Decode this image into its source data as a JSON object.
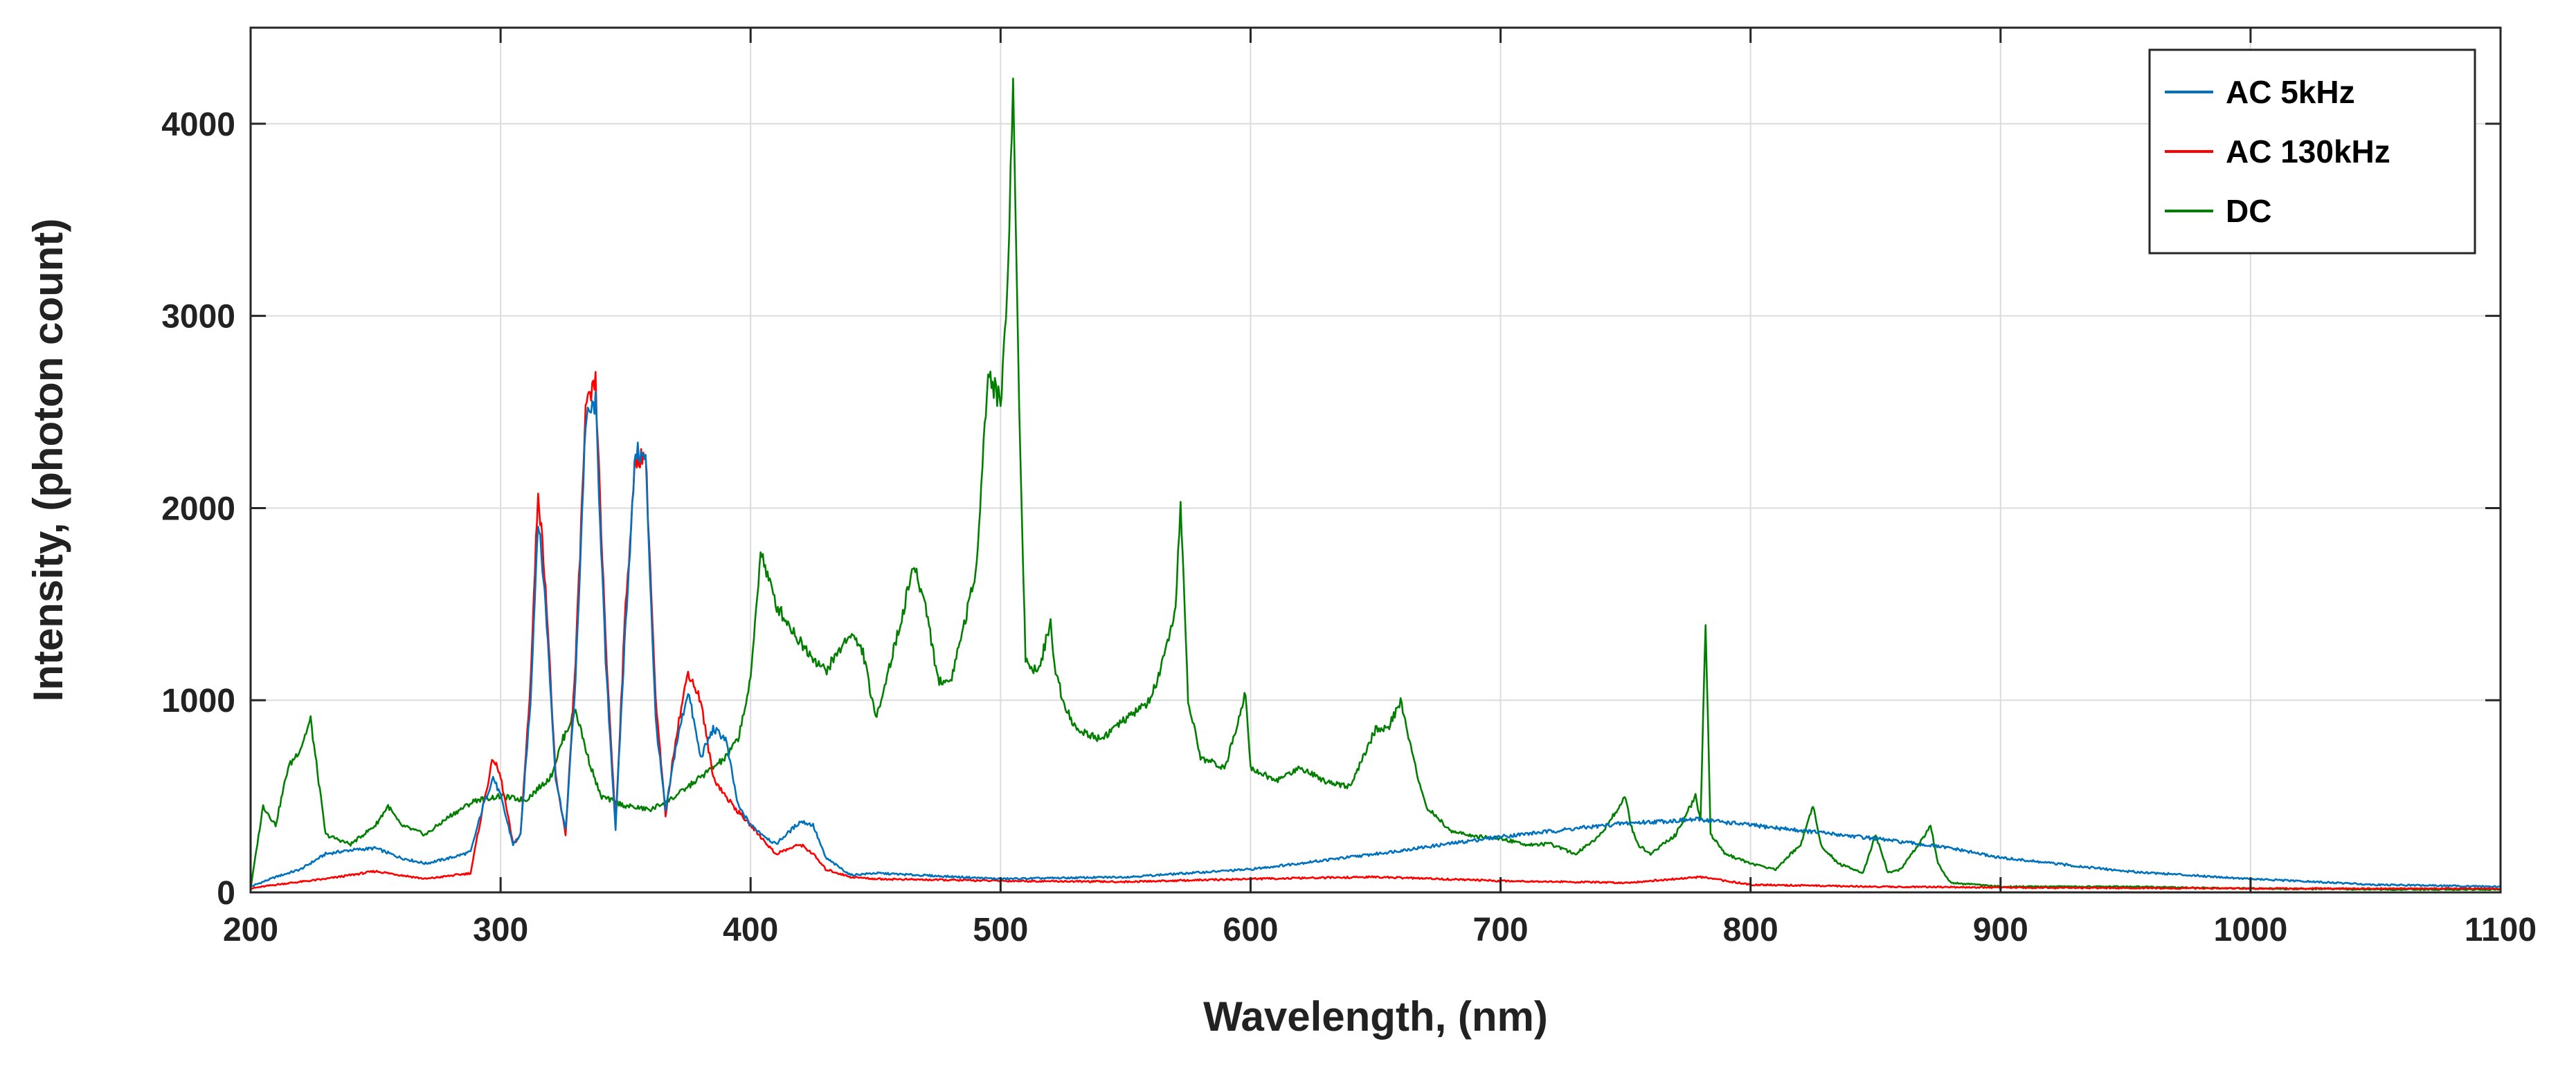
{
  "chart_data": {
    "type": "line",
    "title": "",
    "xlabel": "Wavelength, (nm)",
    "ylabel": "Intensity, (photon count)",
    "xlim": [
      200,
      1100
    ],
    "ylim": [
      0,
      4500
    ],
    "grid": true,
    "legend_position": "top-right",
    "xticks": [
      200,
      300,
      400,
      500,
      600,
      700,
      800,
      900,
      1000,
      1100
    ],
    "yticks": [
      0,
      1000,
      2000,
      3000,
      4000
    ],
    "series": [
      {
        "name": "AC 5kHz",
        "color": "#0072BD",
        "x": [
          200,
          210,
          220,
          230,
          240,
          250,
          260,
          270,
          280,
          288,
          293,
          297,
          300,
          305,
          308,
          312,
          315,
          318,
          322,
          326,
          330,
          334,
          338,
          342,
          346,
          350,
          354,
          358,
          362,
          366,
          370,
          375,
          380,
          385,
          390,
          395,
          400,
          410,
          420,
          425,
          430,
          440,
          450,
          500,
          550,
          600,
          650,
          700,
          750,
          780,
          800,
          850,
          880,
          900,
          950,
          1000,
          1050,
          1100
        ],
        "y": [
          30,
          80,
          120,
          200,
          220,
          230,
          180,
          150,
          180,
          210,
          450,
          600,
          500,
          250,
          300,
          1000,
          1950,
          1500,
          600,
          320,
          1100,
          2450,
          2550,
          1200,
          330,
          1400,
          2300,
          2250,
          900,
          420,
          750,
          1050,
          700,
          850,
          800,
          450,
          350,
          250,
          370,
          350,
          180,
          90,
          100,
          70,
          80,
          120,
          200,
          290,
          360,
          380,
          350,
          280,
          230,
          180,
          110,
          70,
          40,
          30
        ]
      },
      {
        "name": "AC 130kHz",
        "color": "#FF0000",
        "x": [
          200,
          210,
          230,
          250,
          270,
          288,
          293,
          297,
          300,
          305,
          308,
          312,
          315,
          318,
          322,
          326,
          330,
          334,
          338,
          342,
          346,
          350,
          354,
          358,
          362,
          366,
          370,
          375,
          380,
          385,
          390,
          395,
          400,
          410,
          420,
          425,
          430,
          440,
          450,
          500,
          550,
          600,
          650,
          700,
          750,
          780,
          800,
          850,
          900,
          1000,
          1100
        ],
        "y": [
          20,
          40,
          70,
          110,
          70,
          100,
          450,
          700,
          600,
          250,
          300,
          1100,
          2100,
          1600,
          600,
          300,
          1200,
          2500,
          2650,
          1300,
          350,
          1500,
          2250,
          2280,
          1000,
          400,
          800,
          1150,
          1000,
          600,
          500,
          420,
          350,
          200,
          250,
          200,
          120,
          80,
          70,
          60,
          55,
          70,
          80,
          60,
          50,
          80,
          40,
          30,
          25,
          20,
          20
        ]
      },
      {
        "name": "DC",
        "color": "#007F00",
        "x": [
          200,
          205,
          210,
          215,
          220,
          224,
          230,
          240,
          250,
          255,
          260,
          270,
          280,
          290,
          300,
          310,
          320,
          325,
          330,
          335,
          340,
          350,
          360,
          370,
          380,
          390,
          395,
          400,
          404,
          410,
          420,
          430,
          440,
          445,
          450,
          460,
          465,
          470,
          475,
          480,
          490,
          495,
          500,
          503,
          505,
          507,
          510,
          515,
          520,
          522,
          525,
          530,
          540,
          550,
          560,
          565,
          570,
          572,
          575,
          580,
          590,
          598,
          600,
          610,
          620,
          630,
          640,
          650,
          655,
          660,
          665,
          670,
          680,
          690,
          700,
          710,
          720,
          730,
          740,
          750,
          752,
          755,
          760,
          770,
          778,
          780,
          782,
          784,
          790,
          800,
          810,
          820,
          825,
          828,
          835,
          845,
          850,
          855,
          860,
          870,
          872,
          875,
          880,
          900,
          950,
          1000,
          1050,
          1100
        ],
        "y": [
          20,
          450,
          350,
          650,
          750,
          900,
          300,
          250,
          350,
          450,
          350,
          300,
          400,
          480,
          500,
          480,
          600,
          800,
          950,
          700,
          500,
          450,
          430,
          500,
          600,
          700,
          800,
          1100,
          1780,
          1500,
          1300,
          1150,
          1350,
          1250,
          900,
          1400,
          1700,
          1500,
          1100,
          1100,
          1650,
          2700,
          2550,
          3200,
          4250,
          2800,
          1200,
          1150,
          1400,
          1150,
          1000,
          850,
          800,
          900,
          1000,
          1200,
          1450,
          2050,
          1000,
          700,
          650,
          1050,
          650,
          580,
          650,
          580,
          550,
          850,
          850,
          1000,
          700,
          450,
          320,
          290,
          280,
          250,
          250,
          200,
          300,
          500,
          350,
          250,
          200,
          300,
          500,
          380,
          1420,
          300,
          200,
          150,
          120,
          250,
          450,
          250,
          150,
          100,
          300,
          100,
          120,
          300,
          350,
          150,
          50,
          30,
          30,
          20,
          15,
          15
        ]
      }
    ]
  }
}
